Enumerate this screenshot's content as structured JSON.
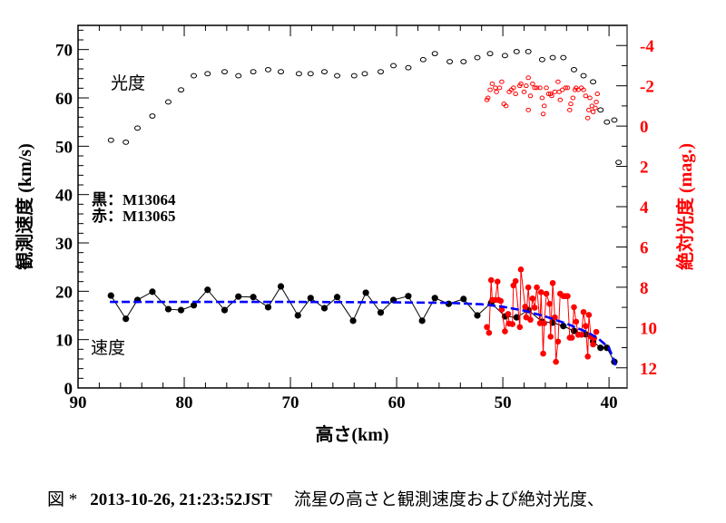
{
  "caption": {
    "prefix": "図 *",
    "datetime": "2013-10-26, 21:23:52JST",
    "text": "流星の高さと観測速度および絶対光度、"
  },
  "chart_data": {
    "type": "scatter",
    "xlabel": "高さ(km)",
    "ylabel_left": "観測速度 (km/s)",
    "ylabel_right": "絶対光度 (mag.)",
    "xlim": [
      90,
      38.3
    ],
    "ylim_left": [
      0,
      75
    ],
    "ylim_right": [
      -5,
      13
    ],
    "right_axis_inverted": true,
    "x_ticks": [
      90,
      80,
      70,
      60,
      50,
      40
    ],
    "y_left_ticks": [
      0,
      10,
      20,
      30,
      40,
      50,
      60,
      70
    ],
    "y_right_ticks": [
      -4,
      -2,
      0,
      2,
      4,
      6,
      8,
      10,
      12
    ],
    "grid": false,
    "colors": {
      "black": "#000000",
      "red": "#ff0000",
      "fit": "#0000ff",
      "right_axis": "#ff0000"
    },
    "annotations": {
      "luminosity": "光度",
      "velocity": "速度",
      "legend_black": "黒：M13064",
      "legend_red": "赤：M13065"
    },
    "series": [
      {
        "key": "velocity_black",
        "axis": "left",
        "style": "filled-line",
        "x": [
          86.9,
          85.5,
          84.4,
          83.0,
          81.5,
          80.3,
          79.1,
          77.8,
          76.2,
          74.9,
          73.5,
          72.1,
          70.9,
          69.3,
          68.1,
          66.8,
          65.6,
          64.1,
          62.9,
          61.5,
          60.3,
          58.9,
          57.6,
          56.4,
          55.1,
          53.7,
          52.4,
          51.1,
          49.8,
          48.7,
          47.6,
          46.3,
          45.3,
          44.3,
          43.3,
          42.2,
          41.5,
          40.8,
          40.2,
          39.5
        ],
        "y": [
          19.1,
          14.3,
          18.2,
          19.9,
          16.3,
          16.1,
          17.1,
          20.3,
          16.1,
          18.9,
          18.8,
          16.7,
          21.0,
          15.0,
          18.6,
          16.5,
          18.8,
          13.9,
          19.7,
          15.6,
          18.2,
          19.0,
          13.9,
          18.6,
          17.4,
          18.4,
          15.0,
          17.6,
          14.8,
          14.6,
          16.1,
          13.7,
          13.5,
          12.8,
          11.8,
          11.1,
          9.6,
          8.3,
          8.3,
          5.4
        ]
      },
      {
        "key": "velocity_fit",
        "axis": "left",
        "style": "dashed-line",
        "x": [
          87,
          80,
          70,
          60,
          55,
          52,
          50,
          48,
          46,
          44,
          42,
          41,
          40,
          39.3
        ],
        "y": [
          17.8,
          17.8,
          17.8,
          17.7,
          17.6,
          17.3,
          16.8,
          16.0,
          14.8,
          13.3,
          11.5,
          10.2,
          8.3,
          4.3
        ]
      },
      {
        "key": "velocity_red",
        "axis": "left",
        "style": "filled-line",
        "x": [
          51.5,
          51.3,
          51.1,
          51.0,
          50.7,
          50.5,
          50.4,
          50.2,
          50.1,
          49.8,
          49.5,
          49.4,
          49.1,
          49.0,
          48.8,
          48.4,
          48.3,
          47.9,
          47.8,
          47.6,
          47.4,
          47.2,
          47.0,
          46.8,
          46.5,
          46.4,
          46.2,
          46.1,
          45.9,
          45.6,
          45.5,
          45.3,
          45.1,
          45.0,
          44.8,
          44.6,
          44.3,
          44.1,
          43.9,
          43.7,
          43.5,
          43.3,
          43.1,
          42.9,
          42.6,
          42.4,
          42.2,
          42.0,
          41.9,
          41.7,
          41.5,
          41.4,
          41.2
        ],
        "y": [
          12.6,
          11.4,
          22.3,
          18.2,
          18.2,
          22.0,
          18.2,
          18.0,
          16.2,
          11.7,
          15.3,
          13.3,
          13.2,
          21.2,
          22.1,
          12.6,
          24.5,
          16.8,
          14.6,
          20.8,
          14.1,
          18.5,
          16.6,
          20.8,
          13.4,
          19.8,
          7.1,
          13.4,
          19.5,
          17.4,
          10.6,
          21.7,
          14.6,
          5.4,
          9.6,
          19.5,
          19.0,
          19.0,
          19.0,
          10.4,
          10.4,
          16.7,
          13.7,
          11.0,
          11.0,
          15.7,
          12.8,
          6.5,
          15.1,
          10.6,
          9.0,
          10.3,
          11.6
        ]
      },
      {
        "key": "magnitude_black",
        "axis": "right",
        "style": "open-circle",
        "x": [
          86.9,
          85.5,
          84.4,
          83.0,
          81.5,
          80.3,
          79.1,
          77.8,
          76.2,
          74.9,
          73.5,
          72.1,
          70.9,
          69.2,
          68.1,
          66.8,
          65.6,
          64.0,
          63.0,
          61.5,
          60.3,
          58.9,
          57.5,
          56.4,
          55.0,
          53.7,
          52.4,
          51.2,
          49.8,
          48.7,
          47.6,
          46.3,
          45.3,
          44.3,
          43.3,
          42.4,
          41.5,
          40.8,
          40.2,
          39.5,
          39.1
        ],
        "y": [
          0.7,
          0.8,
          0.1,
          -0.5,
          -1.2,
          -1.8,
          -2.5,
          -2.6,
          -2.7,
          -2.5,
          -2.7,
          -2.8,
          -2.7,
          -2.6,
          -2.6,
          -2.7,
          -2.5,
          -2.5,
          -2.6,
          -2.7,
          -3.0,
          -2.9,
          -3.3,
          -3.6,
          -3.2,
          -3.2,
          -3.4,
          -3.6,
          -3.5,
          -3.7,
          -3.7,
          -3.3,
          -3.4,
          -3.4,
          -2.8,
          -2.5,
          -2.2,
          -0.8,
          -0.2,
          -0.3,
          1.8
        ]
      },
      {
        "key": "magnitude_red",
        "axis": "right",
        "style": "open-circle",
        "x": [
          51.5,
          51.4,
          51.2,
          51.0,
          50.7,
          50.6,
          50.3,
          50.1,
          49.9,
          49.7,
          49.4,
          49.2,
          49.0,
          48.8,
          48.4,
          48.3,
          48.0,
          47.8,
          47.6,
          47.6,
          47.4,
          47.2,
          47.0,
          46.8,
          46.5,
          46.3,
          46.2,
          46.1,
          45.9,
          45.7,
          45.5,
          45.4,
          45.1,
          44.8,
          44.7,
          44.6,
          44.4,
          44.1,
          43.9,
          43.7,
          43.6,
          43.4,
          43.2,
          43.1,
          42.9,
          42.6,
          42.4,
          42.2,
          42.0,
          41.9,
          41.8,
          41.6,
          41.5,
          41.3,
          41.2,
          41.1
        ],
        "y": [
          -1.3,
          -1.4,
          -1.8,
          -2.1,
          -1.9,
          -1.7,
          -1.9,
          -2.2,
          -1.1,
          -1.0,
          -1.7,
          -1.8,
          -1.9,
          -1.6,
          -2.0,
          -2.1,
          -1.7,
          -2.0,
          -2.4,
          -0.8,
          -1.5,
          -2.1,
          -1.9,
          -1.9,
          -1.9,
          -1.4,
          -0.6,
          -1.0,
          -1.9,
          -1.6,
          -1.6,
          -1.5,
          -1.7,
          -2.2,
          -1.7,
          -1.3,
          -1.8,
          -1.9,
          -1.9,
          -0.8,
          -1.1,
          -1.4,
          -1.8,
          -1.9,
          -1.8,
          -1.9,
          -1.8,
          -1.5,
          -0.4,
          -0.8,
          -1.4,
          -1.0,
          -0.7,
          -0.9,
          -1.2,
          -1.6
        ]
      }
    ]
  }
}
